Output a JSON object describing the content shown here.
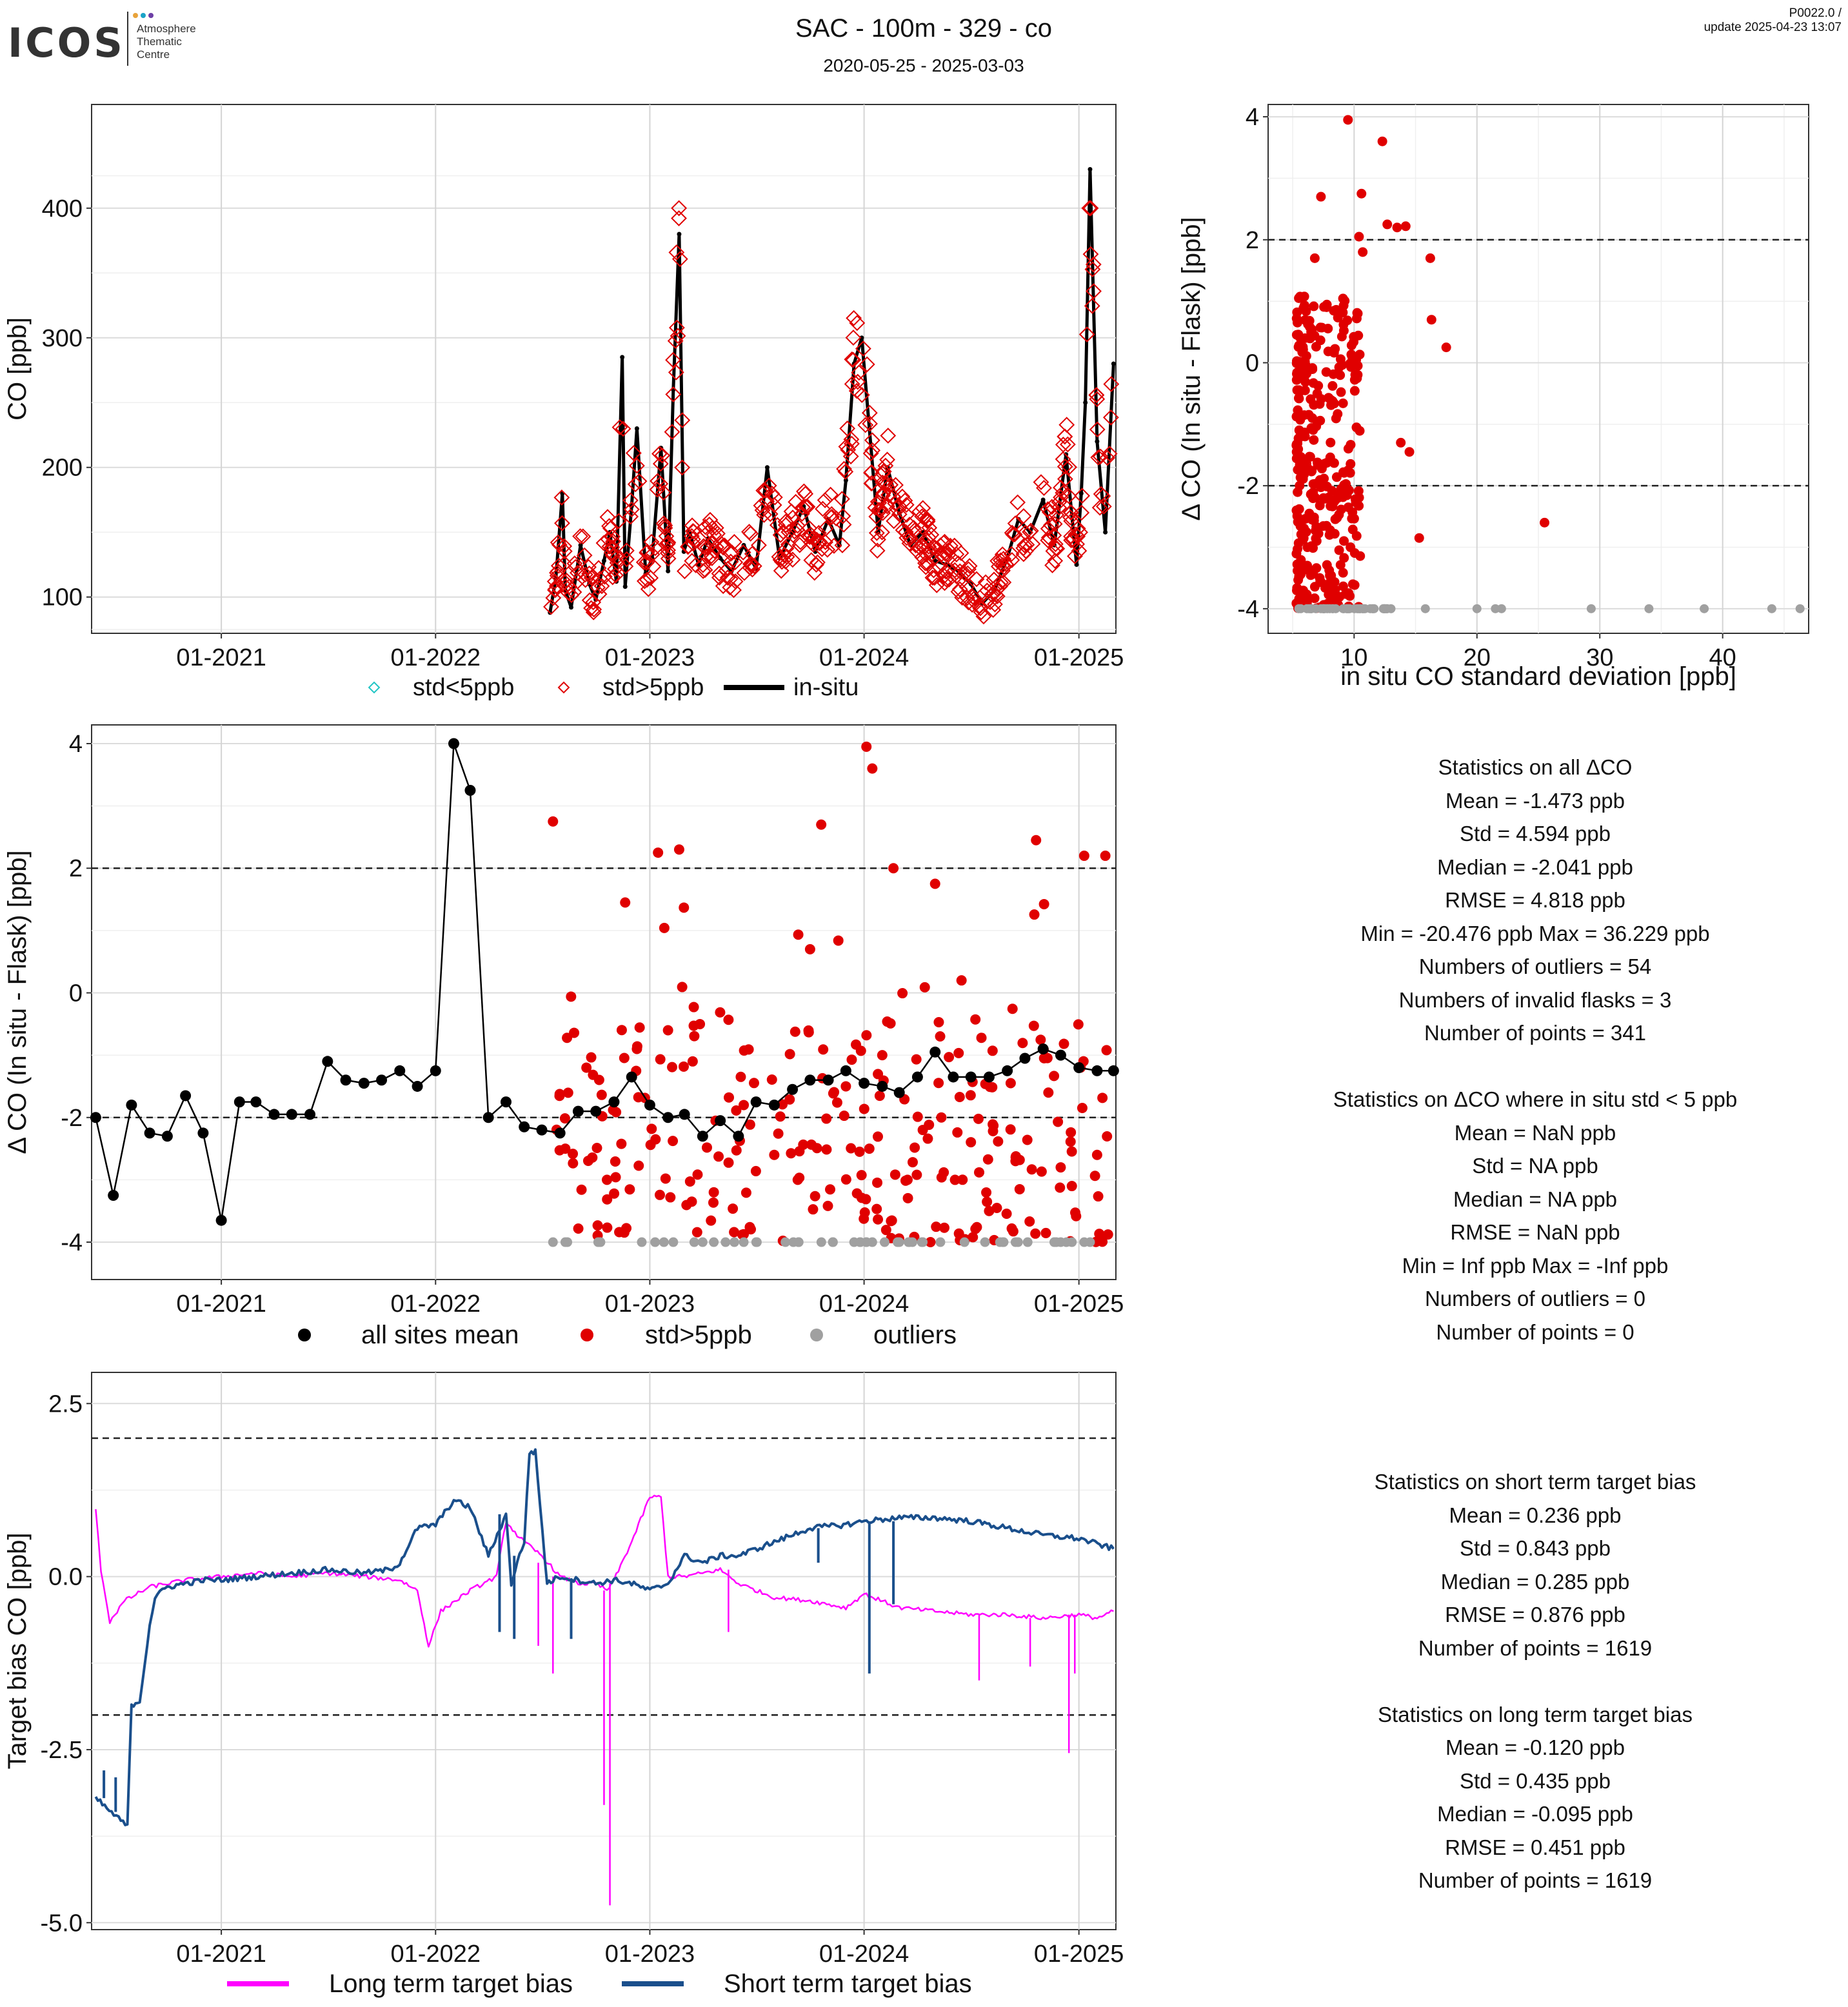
{
  "header": {
    "logo_text": "ICOS",
    "logo_sub": [
      "Atmosphere",
      "Thematic",
      "Centre"
    ],
    "title": "SAC - 100m - 329 - co",
    "date_range": "2020-05-25 - 2025-03-03",
    "version": "P0022.0 /",
    "update": "update  2025-04-23 13:07"
  },
  "colors": {
    "std_lt5": "#22c5c5",
    "std_gt5": "#e00000",
    "insitu": "#000000",
    "outliers": "#a0a0a0",
    "long_term": "#ff00ff",
    "short_term": "#1a4f8c"
  },
  "legends": {
    "p1": [
      "std<5ppb",
      "std>5ppb",
      "in-situ"
    ],
    "p3": [
      "all sites mean",
      "std>5ppb",
      "outliers"
    ],
    "p4": [
      "Long term target bias",
      "Short term target bias"
    ]
  },
  "stats": {
    "all": [
      "Statistics on all ΔCO",
      "Mean =  -1.473 ppb",
      "Std =  4.594 ppb",
      "Median =  -2.041 ppb",
      "RMSE =  4.818 ppb",
      "Min =  -20.476 ppb Max =  36.229 ppb",
      "Numbers of outliers =  54",
      "Numbers of invalid flasks =  3",
      "Number of points =  341"
    ],
    "std5": [
      "Statistics on ΔCO where in situ std < 5 ppb",
      "Mean =  NaN ppb",
      "Std =  NA ppb",
      "Median =  NA ppb",
      "RMSE =  NaN ppb",
      "Min =  Inf ppb Max =  -Inf ppb",
      "Numbers of outliers =  0",
      "Number of points =  0"
    ],
    "short": [
      "Statistics on short term target bias",
      "Mean =  0.236 ppb",
      "Std =  0.843 ppb",
      "Median =  0.285 ppb",
      "RMSE =  0.876 ppb",
      "Number of points =  1619"
    ],
    "long": [
      "Statistics on long term target bias",
      "Mean =  -0.120 ppb",
      "Std =  0.435 ppb",
      "Median =  -0.095 ppb",
      "RMSE =  0.451 ppb",
      "Number of points =  1619"
    ]
  },
  "chart_data": [
    {
      "type": "line",
      "ylabel": "CO [ppb]",
      "x_ticks": [
        "01-2021",
        "01-2022",
        "01-2023",
        "01-2024",
        "01-2025"
      ],
      "y_ticks": [
        100,
        200,
        300,
        400
      ],
      "ylim": [
        72,
        480
      ],
      "xlim": [
        "2020-05-25",
        "2025-03-05"
      ],
      "series": [
        {
          "name": "in-situ",
          "x": [
            "2022-07-15",
            "2022-07-25",
            "2022-08-05",
            "2022-08-10",
            "2022-08-20",
            "2022-09-05",
            "2022-09-20",
            "2022-10-01",
            "2022-10-15",
            "2022-10-25",
            "2022-11-05",
            "2022-11-15",
            "2022-11-20",
            "2022-12-01",
            "2022-12-10",
            "2022-12-25",
            "2023-01-05",
            "2023-01-20",
            "2023-02-01",
            "2023-02-10",
            "2023-02-20",
            "2023-02-28",
            "2023-03-10",
            "2023-03-25",
            "2023-04-10",
            "2023-05-01",
            "2023-05-20",
            "2023-06-10",
            "2023-07-01",
            "2023-07-20",
            "2023-08-10",
            "2023-09-01",
            "2023-09-20",
            "2023-10-10",
            "2023-11-01",
            "2023-11-20",
            "2023-12-01",
            "2023-12-15",
            "2023-12-28",
            "2024-01-10",
            "2024-01-25",
            "2024-02-10",
            "2024-03-01",
            "2024-03-20",
            "2024-04-10",
            "2024-05-01",
            "2024-05-20",
            "2024-06-10",
            "2024-07-01",
            "2024-07-20",
            "2024-08-10",
            "2024-09-01",
            "2024-09-20",
            "2024-10-10",
            "2024-11-01",
            "2024-11-20",
            "2024-12-10",
            "2024-12-28",
            "2025-01-05",
            "2025-01-12",
            "2025-01-20",
            "2025-02-01",
            "2025-02-15",
            "2025-03-01"
          ],
          "values": [
            88,
            115,
            180,
            105,
            92,
            140,
            110,
            98,
            128,
            150,
            112,
            285,
            108,
            170,
            230,
            118,
            130,
            215,
            120,
            260,
            380,
            135,
            150,
            125,
            145,
            130,
            120,
            140,
            122,
            200,
            130,
            150,
            170,
            135,
            160,
            140,
            190,
            280,
            300,
            230,
            150,
            200,
            165,
            140,
            150,
            128,
            125,
            120,
            110,
            95,
            105,
            130,
            160,
            150,
            175,
            140,
            210,
            125,
            180,
            250,
            430,
            220,
            150,
            280
          ]
        }
      ],
      "markers_std_gt5_count": 520,
      "markers_std_lt5_count": 0
    },
    {
      "type": "scatter",
      "ylabel": "Δ CO (In situ - Flask) [ppb]",
      "xlabel": "in situ CO standard deviation [ppb]",
      "x_ticks": [
        10,
        20,
        30,
        40
      ],
      "y_ticks": [
        -4,
        -2,
        0,
        2,
        4
      ],
      "xlim": [
        3,
        47
      ],
      "ylim": [
        -4.4,
        4.2
      ],
      "hlines": [
        -2,
        2
      ],
      "series": [
        {
          "name": "std>5ppb",
          "points": [
            [
              9.5,
              3.95
            ],
            [
              12.3,
              3.6
            ],
            [
              7.3,
              2.7
            ],
            [
              10.6,
              2.75
            ],
            [
              12.7,
              2.25
            ],
            [
              13.5,
              2.2
            ],
            [
              14.2,
              2.22
            ],
            [
              10.4,
              2.05
            ],
            [
              10.7,
              1.8
            ],
            [
              6.8,
              1.7
            ],
            [
              16.2,
              1.7
            ],
            [
              5.5,
              1.05
            ],
            [
              16.3,
              0.7
            ],
            [
              10.3,
              0.8
            ],
            [
              17.5,
              0.25
            ],
            [
              10.3,
              -0.05
            ],
            [
              13.8,
              -1.3
            ],
            [
              14.5,
              -1.45
            ],
            [
              15.3,
              -2.85
            ],
            [
              25.5,
              -2.6
            ],
            [
              9.5,
              -3.75
            ],
            [
              6.5,
              0.5
            ],
            [
              7.0,
              -0.5
            ],
            [
              6.0,
              -1.2
            ],
            [
              7.5,
              -2.2
            ],
            [
              6.2,
              -3.0
            ],
            [
              8.0,
              -2.8
            ],
            [
              5.8,
              -1.7
            ],
            [
              7.2,
              -3.5
            ],
            [
              6.6,
              -0.9
            ]
          ]
        }
      ],
      "outliers_x": [
        5.5,
        6.5,
        7.5,
        8.5,
        9.5,
        10.5,
        11.5,
        12.5,
        13,
        15.8,
        20,
        21.5,
        22,
        29.3,
        34,
        38.5,
        44,
        46.3
      ],
      "outliers_y": -4.0
    },
    {
      "type": "scatter",
      "ylabel": "Δ CO (In situ - Flask) [ppb]",
      "x_ticks": [
        "01-2021",
        "01-2022",
        "01-2023",
        "01-2024",
        "01-2025"
      ],
      "y_ticks": [
        -4,
        -2,
        0,
        2,
        4
      ],
      "ylim": [
        -4.6,
        4.3
      ],
      "xlim": [
        "2020-05-25",
        "2025-03-05"
      ],
      "hlines": [
        -2,
        2
      ],
      "series": [
        {
          "name": "all sites mean",
          "x": [
            "2020-06-01",
            "2020-07-01",
            "2020-08-01",
            "2020-09-01",
            "2020-10-01",
            "2020-11-01",
            "2020-12-01",
            "2021-01-01",
            "2021-02-01",
            "2021-03-01",
            "2021-04-01",
            "2021-05-01",
            "2021-06-01",
            "2021-07-01",
            "2021-08-01",
            "2021-09-01",
            "2021-10-01",
            "2021-11-01",
            "2021-12-01",
            "2022-01-01",
            "2022-02-01",
            "2022-03-01",
            "2022-04-01",
            "2022-05-01",
            "2022-06-01",
            "2022-07-01",
            "2022-08-01",
            "2022-09-01",
            "2022-10-01",
            "2022-11-01",
            "2022-12-01",
            "2023-01-01",
            "2023-02-01",
            "2023-03-01",
            "2023-04-01",
            "2023-05-01",
            "2023-06-01",
            "2023-07-01",
            "2023-08-01",
            "2023-09-01",
            "2023-10-01",
            "2023-11-01",
            "2023-12-01",
            "2024-01-01",
            "2024-02-01",
            "2024-03-01",
            "2024-04-01",
            "2024-05-01",
            "2024-06-01",
            "2024-07-01",
            "2024-08-01",
            "2024-09-01",
            "2024-10-01",
            "2024-11-01",
            "2024-12-01",
            "2025-01-01",
            "2025-02-01",
            "2025-03-01"
          ],
          "values": [
            -2.0,
            -3.25,
            -1.8,
            -2.25,
            -2.3,
            -1.65,
            -2.25,
            -3.65,
            -1.75,
            -1.75,
            -1.95,
            -1.95,
            -1.95,
            -1.1,
            -1.4,
            -1.45,
            -1.4,
            -1.25,
            -1.5,
            -1.25,
            4.0,
            3.25,
            -2.0,
            -1.75,
            -2.15,
            -2.2,
            -2.25,
            -1.9,
            -1.9,
            -1.75,
            -1.35,
            -1.8,
            -2.0,
            -1.95,
            -2.3,
            -2.05,
            -2.3,
            -1.75,
            -1.8,
            -1.55,
            -1.4,
            -1.4,
            -1.25,
            -1.45,
            -1.5,
            -1.6,
            -1.35,
            -0.95,
            -1.35,
            -1.35,
            -1.35,
            -1.25,
            -1.05,
            -0.9,
            -1.0,
            -1.2,
            -1.25,
            -1.25
          ]
        },
        {
          "name": "std>5ppb",
          "x": [
            "2022-07-20",
            "2022-08-10",
            "2022-09-15",
            "2022-10-20",
            "2022-11-20",
            "2022-12-10",
            "2023-01-15",
            "2023-02-01",
            "2023-02-20",
            "2023-03-15",
            "2023-04-20",
            "2023-06-10",
            "2023-08-01",
            "2023-09-10",
            "2023-10-01",
            "2023-10-20",
            "2023-12-01",
            "2024-01-05",
            "2024-01-10",
            "2024-01-15",
            "2024-02-01",
            "2024-02-20",
            "2024-03-15",
            "2024-04-10",
            "2024-05-01",
            "2024-06-15",
            "2024-08-01",
            "2024-09-15",
            "2024-10-20",
            "2024-11-10",
            "2024-12-01",
            "2024-12-20",
            "2025-01-10",
            "2025-02-01",
            "2025-02-15"
          ],
          "values": [
            2.75,
            -2.5,
            -1.2,
            -3.0,
            1.45,
            -0.9,
            2.25,
            -0.6,
            2.3,
            -1.1,
            -3.2,
            -1.8,
            -2.6,
            -3.0,
            0.7,
            2.7,
            -1.5,
            3.95,
            -2.5,
            3.6,
            -1.0,
            2.0,
            -3.0,
            -2.2,
            1.75,
            0.2,
            -3.5,
            -2.7,
            2.45,
            -1.6,
            -2.8,
            -3.1,
            2.2,
            -2.6,
            2.2
          ],
          "count_approx": 287
        },
        {
          "name": "outliers",
          "x": [
            "2022-07-20",
            "2022-08-10",
            "2022-10-05",
            "2023-01-10",
            "2023-01-25",
            "2023-02-10",
            "2023-04-01",
            "2023-04-20",
            "2023-05-10",
            "2023-05-25",
            "2023-06-10",
            "2023-08-20",
            "2023-12-15",
            "2023-12-25",
            "2024-01-05",
            "2024-01-15",
            "2024-02-05",
            "2024-03-01",
            "2024-04-10",
            "2024-05-10",
            "2024-06-20",
            "2024-07-25",
            "2024-09-15",
            "2024-11-20",
            "2024-12-01",
            "2024-12-20",
            "2025-01-10",
            "2025-01-20"
          ],
          "values": [
            -4,
            -4,
            -4,
            -4,
            -4,
            -4,
            -4,
            -4,
            -4,
            -4,
            -4,
            -4,
            -4,
            -4,
            -4,
            -4,
            -4,
            -4,
            -4,
            -4,
            -4,
            -4,
            -4,
            -4,
            -4,
            -4,
            -4,
            -4
          ]
        }
      ]
    },
    {
      "type": "line",
      "ylabel": "Target bias CO [ppb]",
      "x_ticks": [
        "01-2021",
        "01-2022",
        "01-2023",
        "01-2024",
        "01-2025"
      ],
      "y_ticks": [
        2.5,
        0.0,
        -2.5,
        -5.0
      ],
      "y_tick_labels": [
        "2.5",
        "0.0",
        "-2.5",
        "-5.0"
      ],
      "ylim": [
        -5.1,
        2.95
      ],
      "xlim": [
        "2020-05-25",
        "2025-03-05"
      ],
      "hlines": [
        -2,
        2
      ],
      "series": [
        {
          "name": "Long term target bias",
          "x": [
            "2020-06-01",
            "2020-06-10",
            "2020-06-25",
            "2020-07-20",
            "2020-09-01",
            "2020-10-01",
            "2020-11-01",
            "2021-01-01",
            "2021-03-01",
            "2021-05-01",
            "2021-07-01",
            "2021-09-01",
            "2021-11-01",
            "2021-12-01",
            "2021-12-20",
            "2022-01-10",
            "2022-03-01",
            "2022-04-15",
            "2022-05-01",
            "2022-05-20",
            "2022-06-01",
            "2022-07-01",
            "2022-08-01",
            "2022-09-01",
            "2022-10-01",
            "2022-10-20",
            "2022-11-01",
            "2022-12-01",
            "2023-01-01",
            "2023-01-20",
            "2023-02-01",
            "2023-02-20",
            "2023-03-01",
            "2023-04-01",
            "2023-05-01",
            "2023-06-01",
            "2023-08-01",
            "2023-10-01",
            "2023-12-01",
            "2024-01-01",
            "2024-03-01",
            "2024-05-01",
            "2024-07-01",
            "2024-09-01",
            "2024-11-01",
            "2025-01-01",
            "2025-02-01",
            "2025-03-01"
          ],
          "values": [
            0.95,
            0.1,
            -0.65,
            -0.35,
            -0.15,
            -0.1,
            -0.05,
            0.0,
            0.05,
            0.0,
            0.05,
            0.0,
            -0.05,
            -0.2,
            -1.0,
            -0.5,
            -0.2,
            0.0,
            0.8,
            0.6,
            0.5,
            0.3,
            0.0,
            -0.1,
            -0.1,
            -0.2,
            -0.05,
            0.5,
            1.15,
            1.15,
            0.0,
            0.0,
            0.0,
            0.05,
            0.1,
            -0.1,
            -0.3,
            -0.35,
            -0.45,
            -0.25,
            -0.45,
            -0.5,
            -0.55,
            -0.55,
            -0.6,
            -0.55,
            -0.6,
            -0.5
          ]
        },
        {
          "name": "Short term target bias",
          "x": [
            "2020-06-01",
            "2020-06-20",
            "2020-07-10",
            "2020-07-25",
            "2020-08-01",
            "2020-08-15",
            "2020-09-01",
            "2020-09-10",
            "2020-10-01",
            "2020-11-01",
            "2020-12-01",
            "2021-01-01",
            "2021-03-01",
            "2021-05-01",
            "2021-07-01",
            "2021-09-01",
            "2021-10-15",
            "2021-11-01",
            "2021-12-01",
            "2022-01-01",
            "2022-02-01",
            "2022-03-01",
            "2022-04-01",
            "2022-05-01",
            "2022-05-10",
            "2022-05-20",
            "2022-06-01",
            "2022-06-10",
            "2022-06-20",
            "2022-07-10",
            "2022-07-20",
            "2022-08-01",
            "2022-09-01",
            "2022-10-01",
            "2022-11-01",
            "2022-12-01",
            "2023-01-01",
            "2023-02-01",
            "2023-03-01",
            "2023-04-01",
            "2023-05-01",
            "2023-06-01",
            "2023-08-01",
            "2023-10-01",
            "2023-12-01",
            "2024-01-01",
            "2024-03-01",
            "2024-05-01",
            "2024-07-01",
            "2024-09-01",
            "2024-11-01",
            "2025-01-01",
            "2025-03-01"
          ],
          "values": [
            -3.2,
            -3.35,
            -3.5,
            -3.6,
            -1.85,
            -1.8,
            -0.7,
            -0.3,
            -0.15,
            -0.1,
            -0.05,
            -0.05,
            0.0,
            0.05,
            0.1,
            0.05,
            0.1,
            0.2,
            0.7,
            0.75,
            1.1,
            1.0,
            0.3,
            0.9,
            -0.1,
            0.2,
            0.5,
            1.8,
            1.8,
            -0.1,
            -0.05,
            0.0,
            -0.05,
            -0.1,
            -0.05,
            -0.1,
            -0.2,
            -0.1,
            0.3,
            0.2,
            0.3,
            0.3,
            0.5,
            0.7,
            0.75,
            0.8,
            0.85,
            0.85,
            0.8,
            0.7,
            0.6,
            0.55,
            0.4
          ]
        }
      ]
    }
  ]
}
